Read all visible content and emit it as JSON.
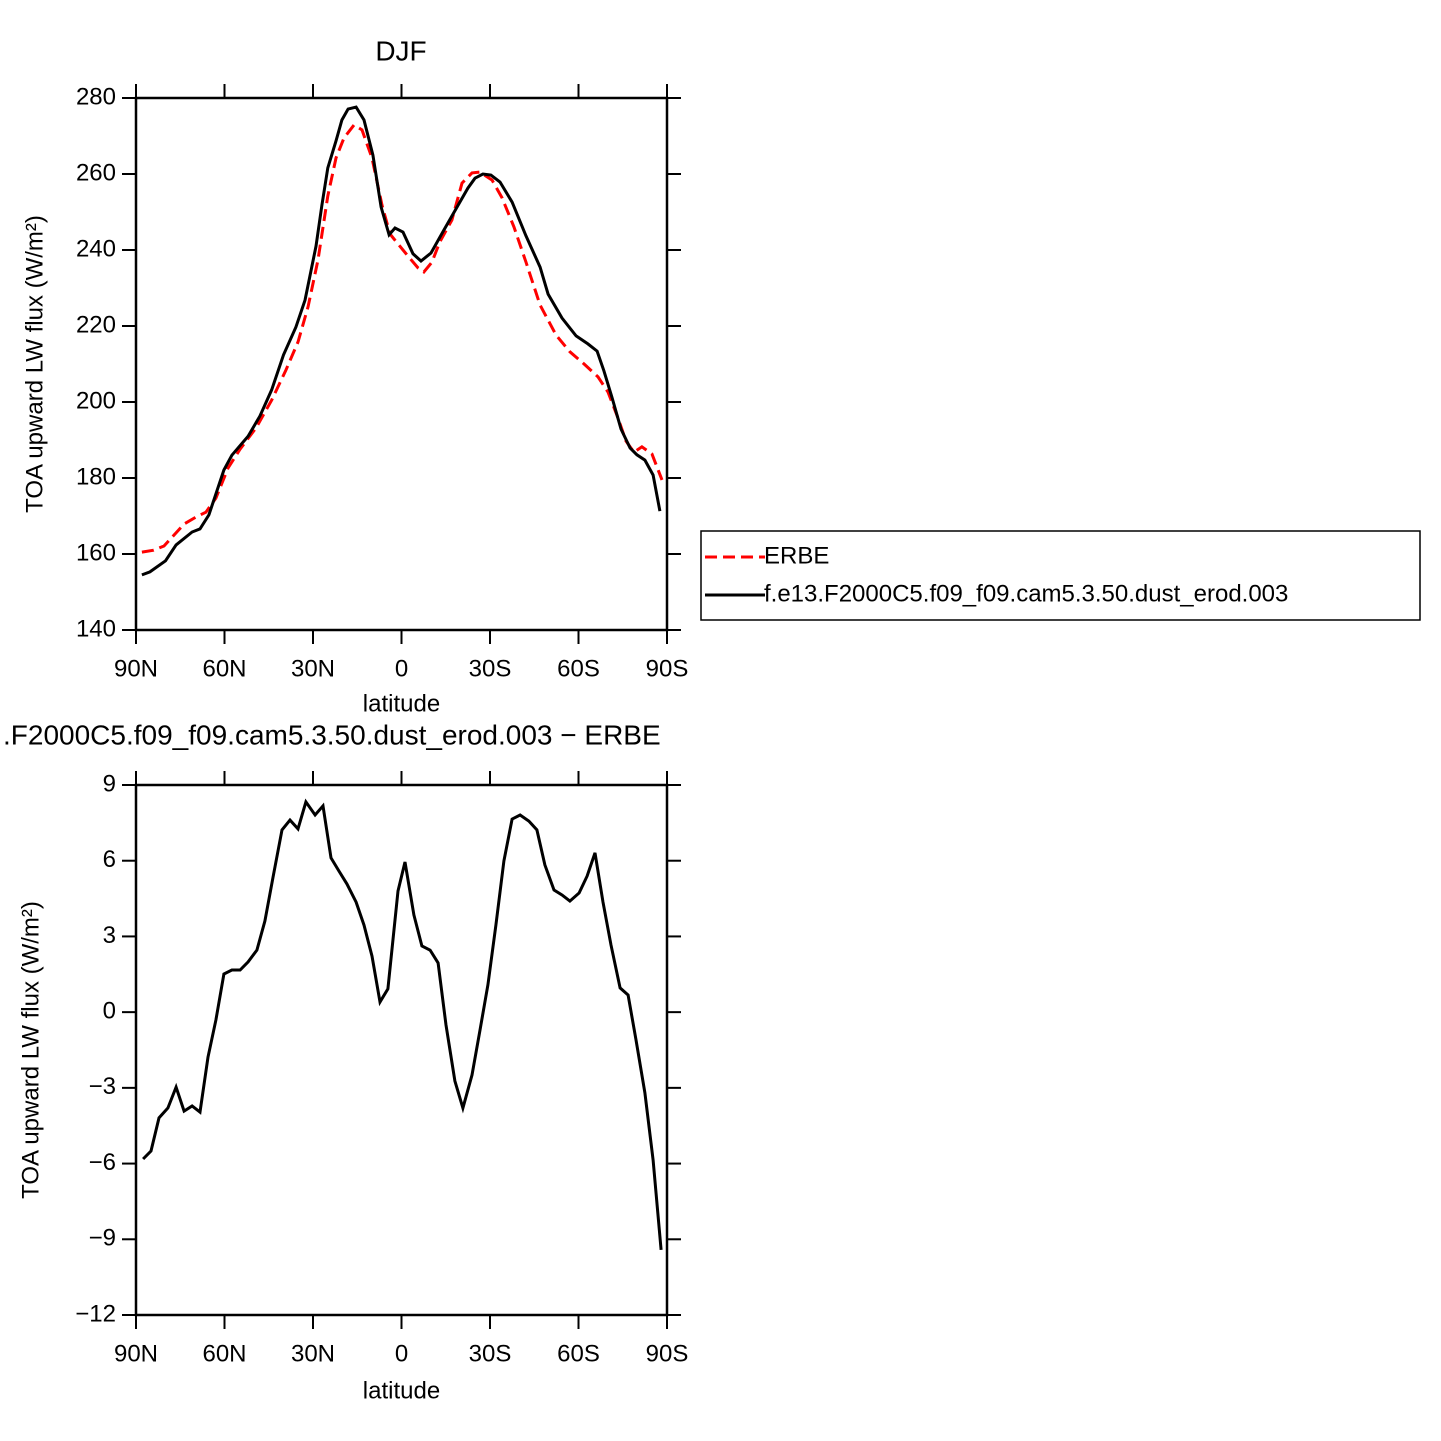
{
  "chart_data": [
    {
      "type": "line",
      "title": "DJF",
      "xlabel": "latitude",
      "ylabel": "TOA upward LW flux (W/m²)",
      "xlim": [
        90,
        -90
      ],
      "xticks": [
        {
          "value": 90,
          "label": "90N"
        },
        {
          "value": 60,
          "label": "60N"
        },
        {
          "value": 30,
          "label": "30N"
        },
        0,
        {
          "value": -30,
          "label": "30S"
        },
        {
          "value": -60,
          "label": "60S"
        },
        {
          "value": -90,
          "label": "90S"
        }
      ],
      "ylim": [
        140,
        280
      ],
      "yticks": [
        140,
        160,
        180,
        200,
        220,
        240,
        260,
        280
      ],
      "legend": "right",
      "series": [
        {
          "name": "ERBE",
          "color": "#ff0000",
          "line_style": "dashed",
          "x": [
            88,
            84,
            80.5,
            73.7,
            69.7,
            66.3,
            62.9,
            58.8,
            54.7,
            49.3,
            44,
            39.2,
            35.1,
            31.7,
            28.3,
            25,
            22.2,
            19.5,
            16.1,
            13.4,
            10,
            6.6,
            3.9,
            1.2,
            -2.2,
            -5.6,
            -7.6,
            -10.3,
            -13,
            -17.1,
            -20.5,
            -23.9,
            -26.6,
            -30.7,
            -34.1,
            -38.1,
            -42.2,
            -47,
            -52.4,
            -57.1,
            -61.9,
            -66.6,
            -70,
            -73.4,
            -76.1,
            -78.8,
            -81.5,
            -84.9,
            -88.3
          ],
          "values": [
            160.5,
            161,
            162.1,
            167.9,
            169.7,
            171,
            174.7,
            182.6,
            187.6,
            193.2,
            200.5,
            208.4,
            215.8,
            225,
            237.4,
            254.2,
            264.2,
            269.5,
            272.9,
            271.6,
            264.2,
            251.8,
            244.2,
            241.6,
            238.4,
            235.3,
            234.2,
            236.8,
            242.1,
            247.9,
            257.6,
            260.3,
            260.5,
            258.4,
            253.7,
            246.1,
            236.8,
            225.5,
            217.6,
            213.2,
            210,
            206.6,
            202.6,
            195.8,
            189.7,
            186.8,
            188.2,
            186.3,
            179.5
          ]
        },
        {
          "name": "f.e13.F2000C5.f09_f09.cam5.3.50.dust_erod.003",
          "color": "#000000",
          "line_style": "solid",
          "x": [
            88,
            85.3,
            80,
            76.4,
            71,
            68.3,
            65.3,
            60.2,
            57.5,
            52,
            48,
            44,
            40,
            35.8,
            32.7,
            29,
            27,
            25,
            22.2,
            20.2,
            18.1,
            15.4,
            12.7,
            9.7,
            6.9,
            4.2,
            2.2,
            -0.5,
            -3.9,
            -6.6,
            -10,
            -14.4,
            -18.8,
            -22.5,
            -24.9,
            -27.6,
            -30.3,
            -33.4,
            -37.5,
            -42.2,
            -47,
            -49.7,
            -54.4,
            -59.2,
            -63.2,
            -66.3,
            -68.6,
            -71.4,
            -74.4,
            -77.5,
            -79.8,
            -82.5,
            -85.3,
            -87.6
          ],
          "values": [
            154.5,
            155.3,
            158.2,
            162.4,
            165.8,
            166.6,
            170.3,
            182.1,
            186,
            191,
            196.3,
            203.2,
            212.4,
            219.7,
            226.8,
            241,
            251.8,
            261.6,
            268.7,
            274.2,
            277.1,
            277.6,
            274.2,
            265,
            251.3,
            244,
            245.8,
            244.7,
            239,
            237.1,
            239.2,
            245.3,
            251.3,
            256.3,
            258.9,
            260,
            259.7,
            257.9,
            252.6,
            243.7,
            235.5,
            228.4,
            222.1,
            217.4,
            215.3,
            213.4,
            208.2,
            201.1,
            192.9,
            187.9,
            186.1,
            184.7,
            180.8,
            171.3
          ]
        }
      ]
    },
    {
      "type": "line",
      "title": ".F2000C5.f09_f09.cam5.3.50.dust_erod.003 − ERBE",
      "xlabel": "latitude",
      "ylabel": "TOA upward LW flux (W/m²)",
      "xlim": [
        90,
        -90
      ],
      "xticks": [
        {
          "value": 90,
          "label": "90N"
        },
        {
          "value": 60,
          "label": "60N"
        },
        {
          "value": 30,
          "label": "30N"
        },
        0,
        {
          "value": -30,
          "label": "30S"
        },
        {
          "value": -60,
          "label": "60S"
        },
        {
          "value": -90,
          "label": "90S"
        }
      ],
      "ylim": [
        -12,
        9
      ],
      "yticks": [
        {
          "value": -12,
          "label": "−12"
        },
        {
          "value": -9,
          "label": "−9"
        },
        {
          "value": -6,
          "label": "−6"
        },
        {
          "value": -3,
          "label": "−3"
        },
        0,
        3,
        6,
        9
      ],
      "color": "#000000",
      "x": [
        87.6,
        84.9,
        82.2,
        79.2,
        76.4,
        73.7,
        71,
        68.3,
        65.6,
        62.9,
        60.2,
        57.5,
        54.7,
        52,
        49,
        46.3,
        43.6,
        40.5,
        37.8,
        35.1,
        32.4,
        29.3,
        26.6,
        23.9,
        21.2,
        18.5,
        15.4,
        12.7,
        10,
        7.3,
        4.6,
        1.2,
        -1.2,
        -4.2,
        -6.9,
        -9.7,
        -12.4,
        -15.1,
        -18.1,
        -20.8,
        -23.9,
        -26.6,
        -29.3,
        -32,
        -34.7,
        -37.5,
        -40.2,
        -43.2,
        -45.9,
        -48.6,
        -51.7,
        -54.4,
        -57.1,
        -60.2,
        -62.9,
        -65.6,
        -68.3,
        -71,
        -74.1,
        -76.8,
        -79.5,
        -82.5,
        -85.3,
        -88
      ],
      "values": [
        -5.82,
        -5.5,
        -4.19,
        -3.8,
        -2.97,
        -3.92,
        -3.72,
        -3.96,
        -1.78,
        -0.31,
        1.51,
        1.67,
        1.67,
        1.99,
        2.46,
        3.61,
        5.32,
        7.22,
        7.61,
        7.26,
        8.33,
        7.81,
        8.17,
        6.11,
        5.59,
        5.08,
        4.36,
        3.45,
        2.22,
        0.4,
        0.92,
        4.8,
        5.95,
        3.85,
        2.62,
        2.46,
        1.95,
        -0.51,
        -2.73,
        -3.8,
        -2.49,
        -0.71,
        1.08,
        3.45,
        5.99,
        7.65,
        7.81,
        7.57,
        7.22,
        5.83,
        4.84,
        4.64,
        4.4,
        4.72,
        5.39,
        6.31,
        4.36,
        2.66,
        0.96,
        0.68,
        -1.1,
        -3.2,
        -5.86,
        -9.42
      ]
    }
  ]
}
